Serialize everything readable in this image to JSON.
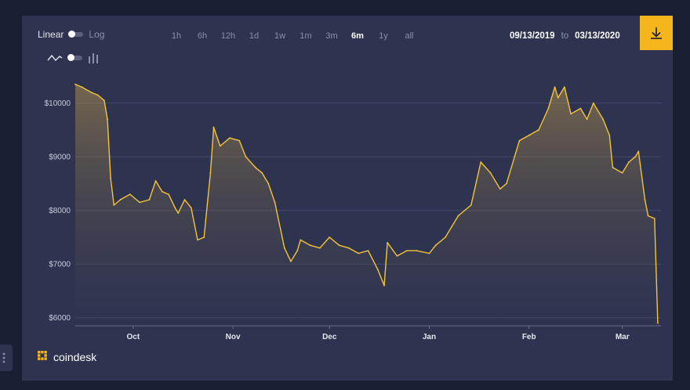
{
  "controls": {
    "scale_linear": "Linear",
    "scale_log": "Log",
    "ranges": [
      "1h",
      "6h",
      "12h",
      "1d",
      "1w",
      "1m",
      "3m",
      "6m",
      "1y",
      "all"
    ],
    "active_range": "6m",
    "date_from": "09/13/2019",
    "date_to_word": "to",
    "date_to": "03/13/2020",
    "chart_style_icons": [
      "line-chart-icon",
      "bar-chart-icon"
    ]
  },
  "brand": {
    "name": "coindesk",
    "accent": "#f4b51d"
  },
  "colors": {
    "line": "#f4c43a",
    "panel": "#2e3350",
    "background": "#1b1f33"
  },
  "chart_data": {
    "type": "area",
    "title": "",
    "xlabel": "",
    "ylabel": "",
    "ylim": [
      5850,
      10550
    ],
    "y_ticks": [
      6000,
      7000,
      8000,
      9000,
      10000
    ],
    "y_tick_labels": [
      "$6000",
      "$7000",
      "$8000",
      "$9000",
      "$10000"
    ],
    "x_tick_labels": [
      "Oct",
      "Nov",
      "Dec",
      "Jan",
      "Feb",
      "Mar"
    ],
    "x_tick_dates": [
      "2019-10-01",
      "2019-11-01",
      "2019-12-01",
      "2020-01-01",
      "2020-02-01",
      "2020-03-01"
    ],
    "x_range": [
      "2019-09-13",
      "2020-03-13"
    ],
    "grid": true,
    "legend": "none",
    "series": [
      {
        "x": [
          "2019-09-13",
          "2019-09-15",
          "2019-09-18",
          "2019-09-20",
          "2019-09-22",
          "2019-09-23",
          "2019-09-24",
          "2019-09-25",
          "2019-09-27",
          "2019-09-30",
          "2019-10-03",
          "2019-10-06",
          "2019-10-08",
          "2019-10-10",
          "2019-10-12",
          "2019-10-14",
          "2019-10-15",
          "2019-10-17",
          "2019-10-19",
          "2019-10-21",
          "2019-10-23",
          "2019-10-25",
          "2019-10-26",
          "2019-10-28",
          "2019-10-31",
          "2019-11-03",
          "2019-11-05",
          "2019-11-08",
          "2019-11-10",
          "2019-11-12",
          "2019-11-14",
          "2019-11-17",
          "2019-11-19",
          "2019-11-21",
          "2019-11-22",
          "2019-11-25",
          "2019-11-28",
          "2019-12-01",
          "2019-12-04",
          "2019-12-07",
          "2019-12-10",
          "2019-12-13",
          "2019-12-16",
          "2019-12-18",
          "2019-12-19",
          "2019-12-22",
          "2019-12-25",
          "2019-12-28",
          "2020-01-01",
          "2020-01-03",
          "2020-01-06",
          "2020-01-08",
          "2020-01-10",
          "2020-01-14",
          "2020-01-17",
          "2020-01-20",
          "2020-01-23",
          "2020-01-25",
          "2020-01-29",
          "2020-02-01",
          "2020-02-04",
          "2020-02-07",
          "2020-02-09",
          "2020-02-10",
          "2020-02-12",
          "2020-02-14",
          "2020-02-17",
          "2020-02-19",
          "2020-02-21",
          "2020-02-24",
          "2020-02-26",
          "2020-02-27",
          "2020-03-01",
          "2020-03-03",
          "2020-03-05",
          "2020-03-06",
          "2020-03-08",
          "2020-03-09",
          "2020-03-11",
          "2020-03-12"
        ],
        "values": [
          10350,
          10300,
          10200,
          10150,
          10050,
          9700,
          8600,
          8100,
          8200,
          8300,
          8150,
          8200,
          8550,
          8350,
          8300,
          8050,
          7950,
          8200,
          8050,
          7450,
          7500,
          8700,
          9550,
          9200,
          9350,
          9300,
          9000,
          8800,
          8700,
          8500,
          8150,
          7300,
          7050,
          7250,
          7450,
          7350,
          7300,
          7500,
          7350,
          7300,
          7200,
          7250,
          6900,
          6600,
          7400,
          7150,
          7250,
          7250,
          7200,
          7350,
          7500,
          7700,
          7900,
          8100,
          8900,
          8700,
          8400,
          8500,
          9300,
          9400,
          9500,
          9900,
          10300,
          10100,
          10300,
          9800,
          9900,
          9700,
          10000,
          9700,
          9400,
          8800,
          8700,
          8900,
          9000,
          9100,
          8200,
          7900,
          7850,
          5900
        ]
      }
    ]
  }
}
